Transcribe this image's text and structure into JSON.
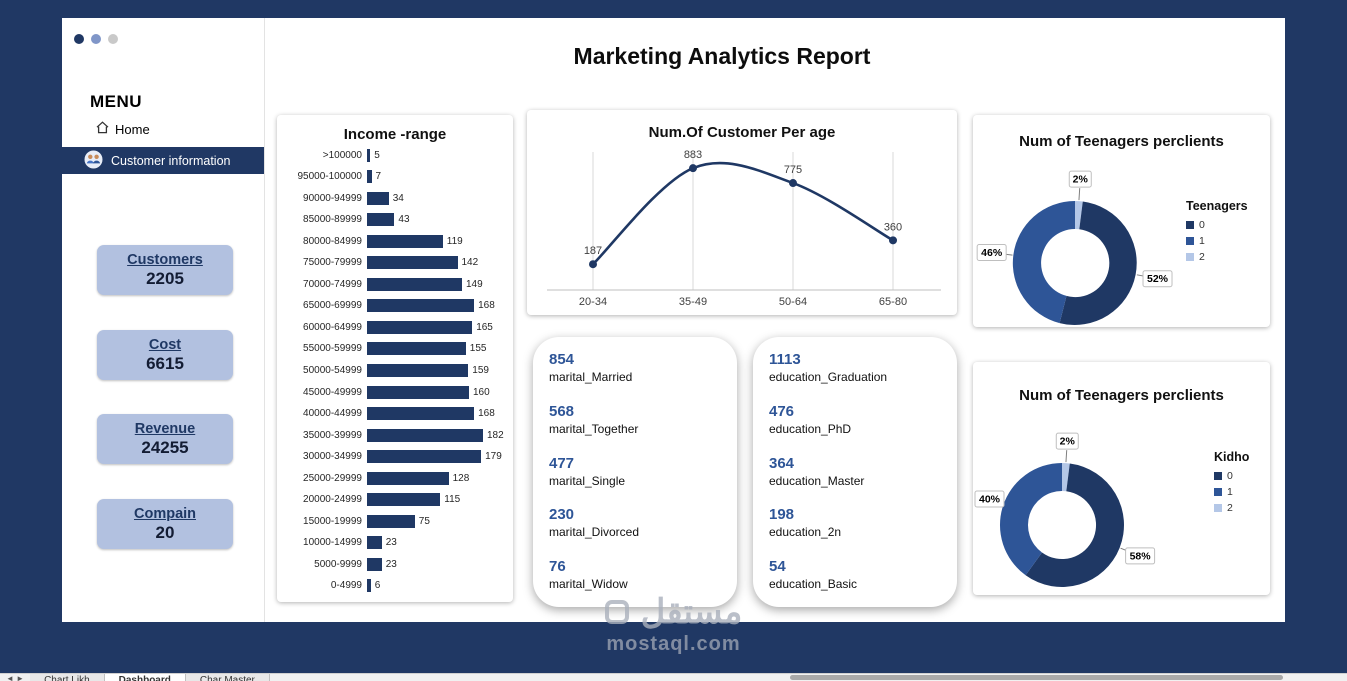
{
  "page": {
    "title": "Marketing Analytics Report"
  },
  "sidebar": {
    "menu_label": "MENU",
    "home_label": "Home",
    "customer_info_label": "Customer information",
    "kpis": [
      {
        "label": "Customers",
        "value": "2205"
      },
      {
        "label": "Cost",
        "value": "6615"
      },
      {
        "label": "Revenue",
        "value": "24255"
      },
      {
        "label": "Compain",
        "value": "20"
      }
    ]
  },
  "chart_data": [
    {
      "name": "income_range",
      "type": "bar",
      "orientation": "horizontal",
      "title": "Income -range",
      "categories": [
        ">100000",
        "95000-100000",
        "90000-94999",
        "85000-89999",
        "80000-84999",
        "75000-79999",
        "70000-74999",
        "65000-69999",
        "60000-64999",
        "55000-59999",
        "50000-54999",
        "45000-49999",
        "40000-44999",
        "35000-39999",
        "30000-34999",
        "25000-29999",
        "20000-24999",
        "15000-19999",
        "10000-14999",
        "5000-9999",
        "0-4999"
      ],
      "values": [
        5,
        7,
        34,
        43,
        119,
        142,
        149,
        168,
        165,
        155,
        159,
        160,
        168,
        182,
        179,
        128,
        115,
        75,
        23,
        23,
        6
      ],
      "bar_color": "#1f3864",
      "grid": false,
      "legend": "none"
    },
    {
      "name": "customers_per_age",
      "type": "line",
      "title": "Num.Of Customer Per age",
      "categories": [
        "20-34",
        "35-49",
        "50-64",
        "65-80"
      ],
      "values": [
        187,
        883,
        775,
        360
      ],
      "line_color": "#1f3864",
      "ylim": [
        0,
        1000
      ],
      "grid": "vertical",
      "legend": "none"
    },
    {
      "name": "teenagers_per_clients",
      "type": "pie",
      "subtype": "donut",
      "title": "Num of Teenagers perclients",
      "legend_title": "Teenagers",
      "legend_position": "right",
      "slices": [
        {
          "label": "2%",
          "pct": 2,
          "color": "#b4c7e7"
        },
        {
          "label": "52%",
          "pct": 52,
          "color": "#1f3864"
        },
        {
          "label": "46%",
          "pct": 46,
          "color": "#2e5597"
        }
      ],
      "legend": [
        {
          "label": "0",
          "color": "#1f3864"
        },
        {
          "label": "1",
          "color": "#2e5597"
        },
        {
          "label": "2",
          "color": "#b4c7e7"
        }
      ]
    },
    {
      "name": "kidho_per_clients",
      "type": "pie",
      "subtype": "donut",
      "title": "Num of Teenagers perclients",
      "legend_title": "Kidho",
      "legend_position": "right",
      "slices": [
        {
          "label": "2%",
          "pct": 2,
          "color": "#b4c7e7"
        },
        {
          "label": "58%",
          "pct": 58,
          "color": "#1f3864"
        },
        {
          "label": "40%",
          "pct": 40,
          "color": "#2e5597"
        }
      ],
      "legend": [
        {
          "label": "0",
          "color": "#1f3864"
        },
        {
          "label": "1",
          "color": "#2e5597"
        },
        {
          "label": "2",
          "color": "#b4c7e7"
        }
      ]
    },
    {
      "name": "marital_status",
      "type": "table",
      "rows": [
        {
          "value": "854",
          "label": "marital_Married"
        },
        {
          "value": "568",
          "label": "marital_Together"
        },
        {
          "value": "477",
          "label": "marital_Single"
        },
        {
          "value": "230",
          "label": "marital_Divorced"
        },
        {
          "value": "76",
          "label": "marital_Widow"
        }
      ]
    },
    {
      "name": "education_level",
      "type": "table",
      "rows": [
        {
          "value": "1113",
          "label": "education_Graduation"
        },
        {
          "value": "476",
          "label": "education_PhD"
        },
        {
          "value": "364",
          "label": "education_Master"
        },
        {
          "value": "198",
          "label": "education_2n"
        },
        {
          "value": "54",
          "label": "education_Basic"
        }
      ]
    }
  ],
  "watermark": {
    "arabic": "مستقل",
    "latin": "mostaql.com"
  },
  "bottom_bar": {
    "tabs": [
      {
        "label": "Chart Likh",
        "active": false
      },
      {
        "label": "Dashboard",
        "active": true
      },
      {
        "label": "Char Master",
        "active": false
      }
    ]
  }
}
